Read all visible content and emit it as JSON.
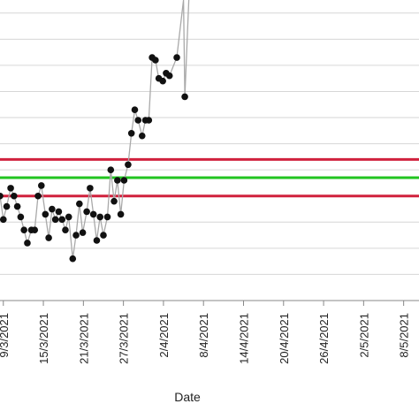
{
  "chart_data": {
    "type": "line",
    "xlabel": "Date",
    "ylabel": "",
    "title": "",
    "grid": "horizontal",
    "x_ticks": [
      "9/3/2021",
      "15/3/2021",
      "21/3/2021",
      "27/3/2021",
      "2/4/2021",
      "8/4/2021",
      "14/4/2021",
      "20/4/2021",
      "26/4/2021",
      "2/5/2021",
      "8/5/2021"
    ],
    "x_tick_days": [
      0,
      6,
      12,
      18,
      24,
      30,
      36,
      42,
      48,
      54,
      60
    ],
    "xlim": [
      -0.5,
      62.3
    ],
    "ylim": [
      0,
      11.5
    ],
    "series": [
      {
        "values": [
          [
            -0.5,
            4.0
          ],
          [
            0.0,
            3.1
          ],
          [
            0.5,
            3.6
          ],
          [
            1.1,
            4.3
          ],
          [
            1.6,
            4.0
          ],
          [
            2.1,
            3.6
          ],
          [
            2.6,
            3.2
          ],
          [
            3.1,
            2.7
          ],
          [
            3.6,
            2.2
          ],
          [
            4.2,
            2.7
          ],
          [
            4.7,
            2.7
          ],
          [
            5.2,
            4.0
          ],
          [
            5.7,
            4.4
          ],
          [
            6.3,
            3.3
          ],
          [
            6.8,
            2.4
          ],
          [
            7.3,
            3.5
          ],
          [
            7.8,
            3.1
          ],
          [
            8.3,
            3.4
          ],
          [
            8.8,
            3.1
          ],
          [
            9.3,
            2.7
          ],
          [
            9.8,
            3.2
          ],
          [
            10.4,
            1.6
          ],
          [
            10.9,
            2.5
          ],
          [
            11.4,
            3.7
          ],
          [
            11.9,
            2.6
          ],
          [
            12.5,
            3.4
          ],
          [
            13.0,
            4.3
          ],
          [
            13.5,
            3.3
          ],
          [
            14.0,
            2.3
          ],
          [
            14.5,
            3.2
          ],
          [
            15.0,
            2.5
          ],
          [
            15.6,
            3.2
          ],
          [
            16.1,
            5.0
          ],
          [
            16.6,
            3.8
          ],
          [
            17.1,
            4.6
          ],
          [
            17.6,
            3.3
          ],
          [
            18.1,
            4.6
          ],
          [
            18.7,
            5.2
          ],
          [
            19.2,
            6.4
          ],
          [
            19.7,
            7.3
          ],
          [
            20.2,
            6.9
          ],
          [
            20.8,
            6.3
          ],
          [
            21.3,
            6.9
          ],
          [
            21.8,
            6.9
          ],
          [
            22.3,
            9.3
          ],
          [
            22.8,
            9.2
          ],
          [
            23.3,
            8.5
          ],
          [
            23.9,
            8.4
          ],
          [
            24.4,
            8.7
          ],
          [
            24.9,
            8.6
          ],
          [
            26.0,
            9.3
          ],
          [
            27.0,
            11.5
          ],
          [
            27.2,
            7.8
          ],
          [
            27.8,
            11.5
          ]
        ]
      }
    ],
    "reference_lines": [
      {
        "value": 5.4,
        "color": "#d0213d"
      },
      {
        "value": 4.7,
        "color": "#21c41f"
      },
      {
        "value": 4.0,
        "color": "#d0213d"
      }
    ],
    "colors": {
      "line": "#a9a9a9",
      "marker": "#111111",
      "grid": "#d6d6d6",
      "axis": "#888888"
    }
  }
}
